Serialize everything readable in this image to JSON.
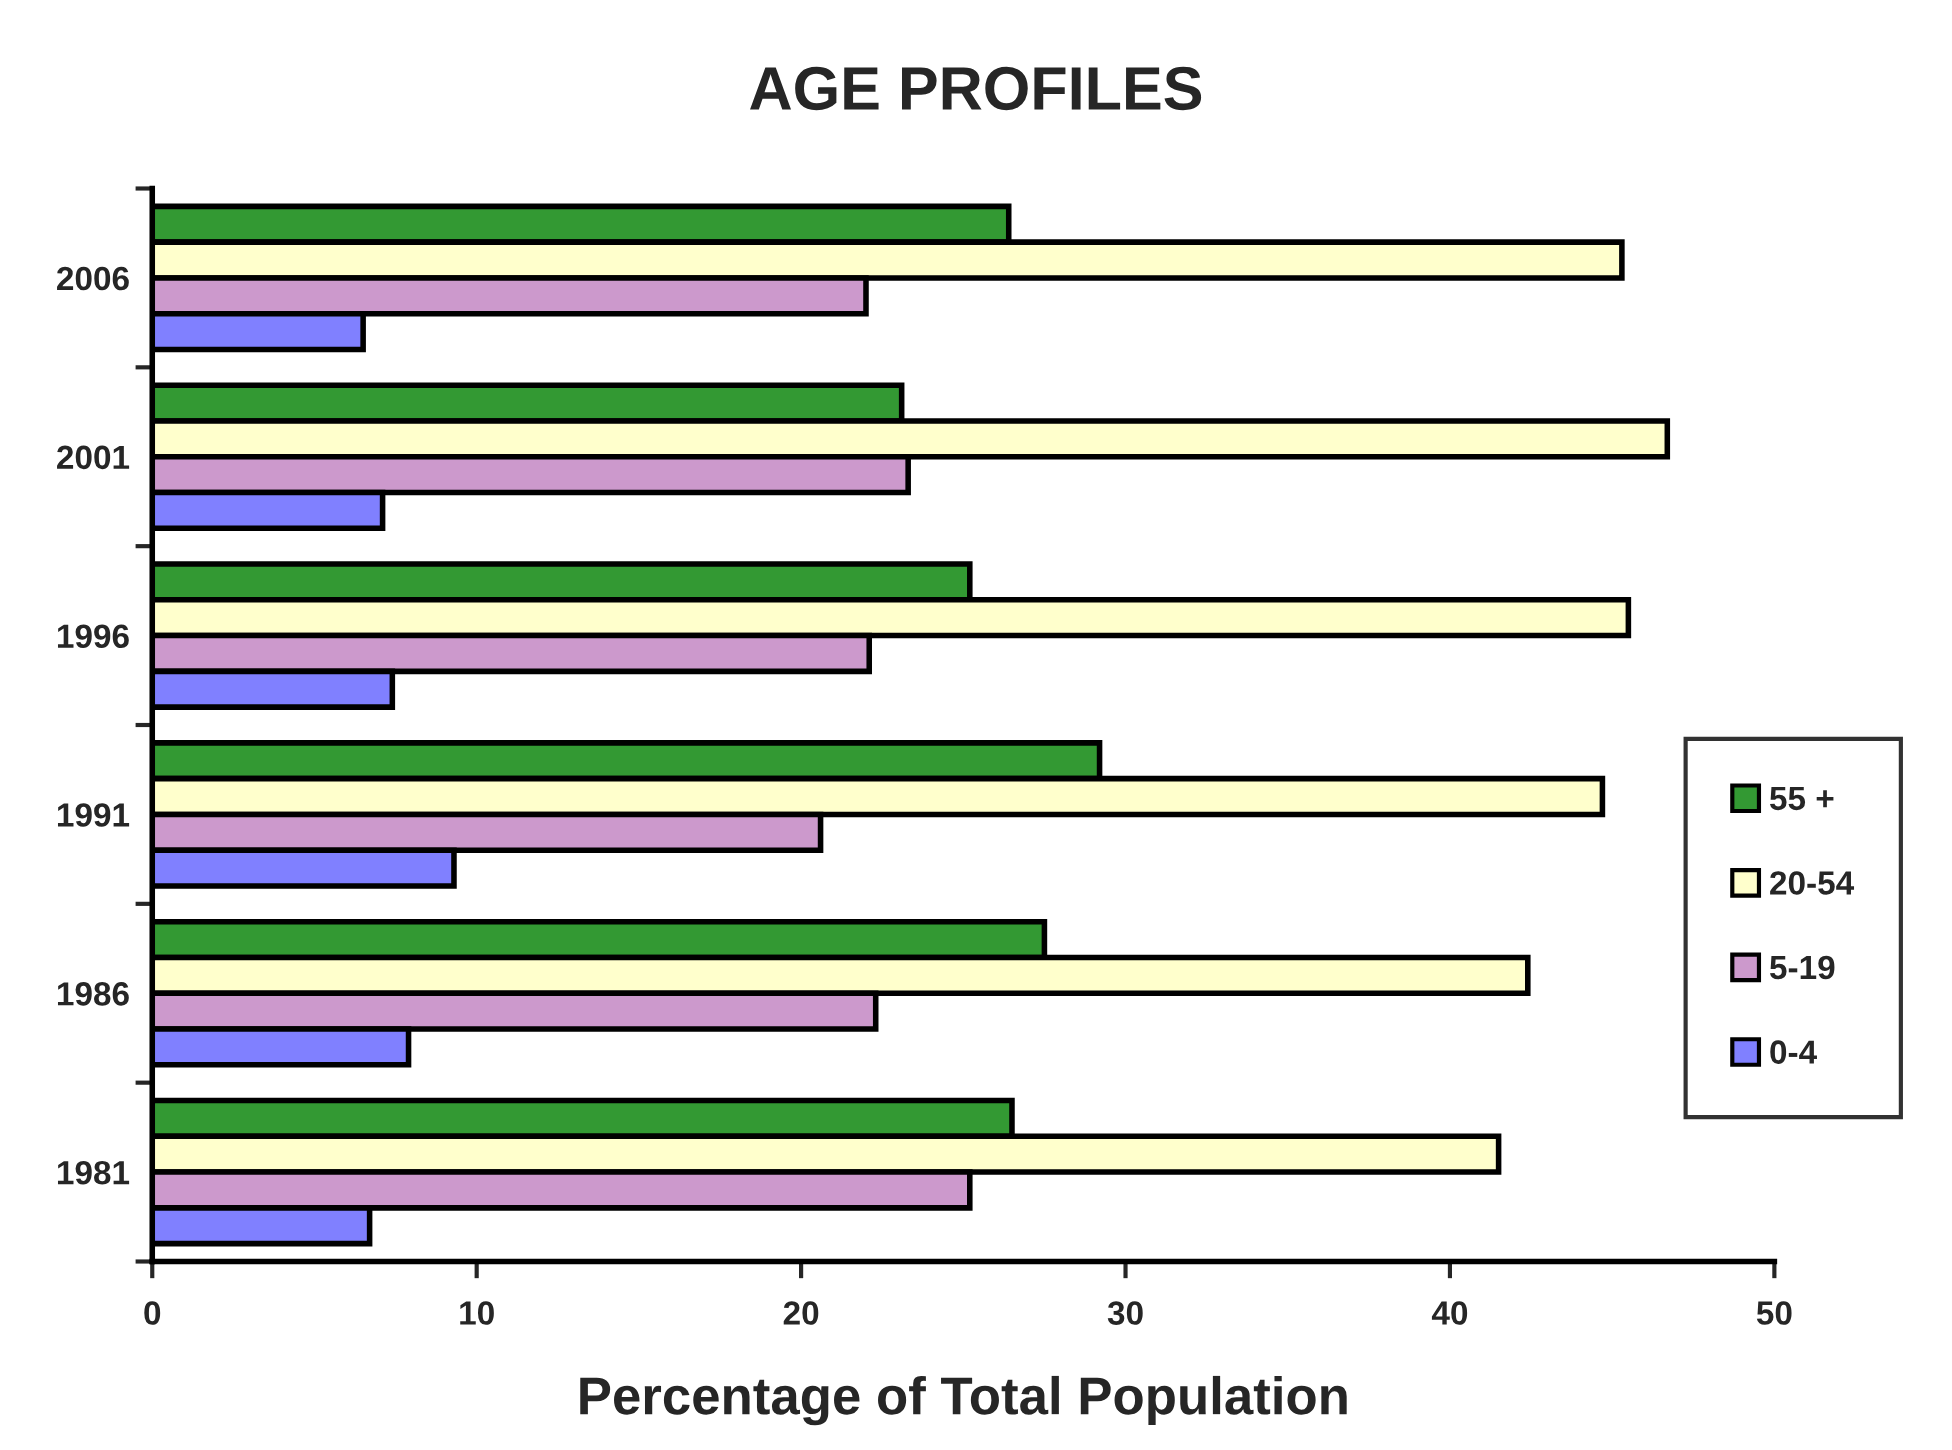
{
  "chart_data": {
    "type": "bar",
    "orientation": "horizontal",
    "title": "AGE PROFILES",
    "xlabel": "Percentage of Total Population",
    "categories": [
      "2006",
      "2001",
      "1996",
      "1991",
      "1986",
      "1981"
    ],
    "series": [
      {
        "name": "55 +",
        "color": "#339933",
        "values": [
          26.4,
          23.1,
          25.2,
          29.2,
          27.5,
          26.5
        ]
      },
      {
        "name": "20-54",
        "color": "#ffffcc",
        "values": [
          45.3,
          46.7,
          45.5,
          44.7,
          42.4,
          41.5
        ]
      },
      {
        "name": "5-19",
        "color": "#cc99cc",
        "values": [
          22.0,
          23.3,
          22.1,
          20.6,
          22.3,
          25.2
        ]
      },
      {
        "name": "0-4",
        "color": "#8080ff",
        "values": [
          6.5,
          7.1,
          7.4,
          9.3,
          7.9,
          6.7
        ]
      }
    ],
    "xlim": [
      0,
      50
    ],
    "xticks": [
      0,
      10,
      20,
      30,
      40,
      50
    ],
    "grid": false,
    "legend": "right"
  }
}
